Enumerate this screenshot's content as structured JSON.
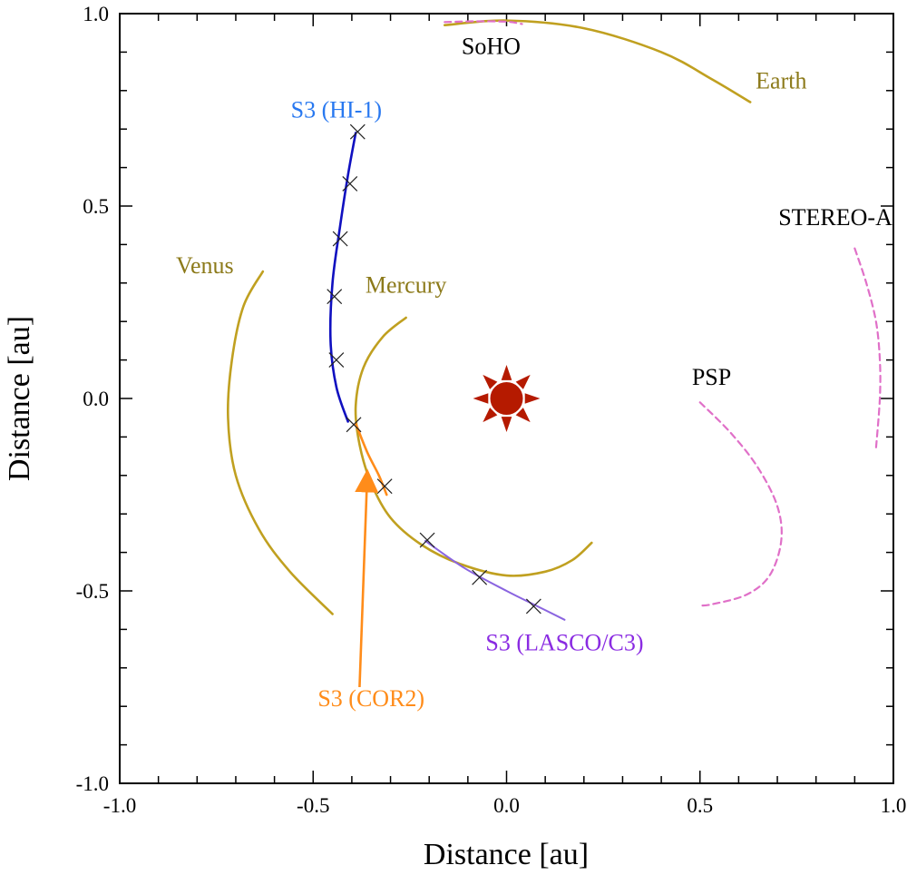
{
  "chart_data": {
    "type": "line",
    "xlabel": "Distance [au]",
    "ylabel": "Distance [au]",
    "xlim": [
      -1.0,
      1.0
    ],
    "ylim": [
      -1.0,
      1.0
    ],
    "xticks": [
      -1.0,
      -0.5,
      0.0,
      0.5,
      1.0
    ],
    "yticks": [
      -1.0,
      -0.5,
      0.0,
      0.5,
      1.0
    ],
    "xtick_labels": [
      "-1.0",
      "-0.5",
      "0.0",
      "0.5",
      "1.0"
    ],
    "ytick_labels": [
      "-1.0",
      "-0.5",
      "0.0",
      "0.5",
      "1.0"
    ],
    "grid": false,
    "colors": {
      "planet": "#c0a020",
      "spacecraft": "#e070c8",
      "hi1": "#1010c0",
      "cor2": "#ff8c1a",
      "lasco": "#8a64e0",
      "sun": "#b51a00",
      "marker": "#222222"
    },
    "series": [
      {
        "name": "Earth",
        "style": "planet",
        "dash": false,
        "points": [
          [
            -0.16,
            0.97
          ],
          [
            0.0,
            0.982
          ],
          [
            0.2,
            0.962
          ],
          [
            0.4,
            0.9
          ],
          [
            0.53,
            0.83
          ],
          [
            0.63,
            0.77
          ]
        ]
      },
      {
        "name": "Venus",
        "style": "planet",
        "dash": false,
        "points": [
          [
            -0.63,
            0.33
          ],
          [
            -0.68,
            0.24
          ],
          [
            -0.71,
            0.1
          ],
          [
            -0.72,
            -0.05
          ],
          [
            -0.7,
            -0.2
          ],
          [
            -0.64,
            -0.34
          ],
          [
            -0.56,
            -0.45
          ],
          [
            -0.45,
            -0.56
          ]
        ]
      },
      {
        "name": "Mercury",
        "style": "planet",
        "dash": false,
        "points": [
          [
            -0.26,
            0.21
          ],
          [
            -0.32,
            0.16
          ],
          [
            -0.37,
            0.08
          ],
          [
            -0.39,
            -0.02
          ],
          [
            -0.38,
            -0.12
          ],
          [
            -0.35,
            -0.22
          ],
          [
            -0.3,
            -0.31
          ],
          [
            -0.22,
            -0.38
          ],
          [
            -0.12,
            -0.43
          ],
          [
            0.0,
            -0.46
          ],
          [
            0.1,
            -0.45
          ],
          [
            0.17,
            -0.42
          ],
          [
            0.22,
            -0.375
          ]
        ]
      },
      {
        "name": "SoHO",
        "style": "spacecraft",
        "dash": true,
        "points": [
          [
            -0.16,
            0.978
          ],
          [
            -0.08,
            0.98
          ],
          [
            0.0,
            0.979
          ],
          [
            0.04,
            0.973
          ]
        ]
      },
      {
        "name": "STEREO-A",
        "style": "spacecraft",
        "dash": true,
        "points": [
          [
            0.9,
            0.39
          ],
          [
            0.93,
            0.3
          ],
          [
            0.955,
            0.2
          ],
          [
            0.965,
            0.1
          ],
          [
            0.965,
            0.0
          ],
          [
            0.955,
            -0.13
          ]
        ]
      },
      {
        "name": "PSP",
        "style": "spacecraft",
        "dash": true,
        "points": [
          [
            0.5,
            -0.01
          ],
          [
            0.58,
            -0.09
          ],
          [
            0.65,
            -0.18
          ],
          [
            0.7,
            -0.28
          ],
          [
            0.71,
            -0.37
          ],
          [
            0.68,
            -0.46
          ],
          [
            0.62,
            -0.51
          ],
          [
            0.53,
            -0.535
          ],
          [
            0.5,
            -0.538
          ]
        ]
      },
      {
        "name": "S3 (HI-1)",
        "style": "hi1",
        "dash": false,
        "points": [
          [
            -0.39,
            0.69
          ],
          [
            -0.41,
            0.58
          ],
          [
            -0.43,
            0.45
          ],
          [
            -0.45,
            0.3
          ],
          [
            -0.455,
            0.15
          ],
          [
            -0.44,
            0.03
          ],
          [
            -0.41,
            -0.06
          ]
        ]
      },
      {
        "name": "S3 (COR2)",
        "style": "cor2",
        "dash": false,
        "points": [
          [
            -0.39,
            -0.065
          ],
          [
            -0.36,
            -0.14
          ],
          [
            -0.33,
            -0.2
          ],
          [
            -0.31,
            -0.25
          ]
        ]
      },
      {
        "name": "S3 (LASCO/C3)",
        "style": "lasco",
        "dash": false,
        "points": [
          [
            -0.21,
            -0.37
          ],
          [
            -0.11,
            -0.44
          ],
          [
            0.0,
            -0.5
          ],
          [
            0.08,
            -0.54
          ],
          [
            0.15,
            -0.575
          ]
        ]
      }
    ],
    "markers": [
      [
        -0.385,
        0.693
      ],
      [
        -0.405,
        0.558
      ],
      [
        -0.43,
        0.415
      ],
      [
        -0.445,
        0.265
      ],
      [
        -0.44,
        0.1
      ],
      [
        -0.395,
        -0.068
      ],
      [
        -0.315,
        -0.228
      ],
      [
        -0.205,
        -0.368
      ],
      [
        -0.07,
        -0.465
      ],
      [
        0.07,
        -0.54
      ]
    ],
    "sun": {
      "x": 0.0,
      "y": 0.0
    },
    "arrow": {
      "from": [
        -0.38,
        -0.75
      ],
      "to": [
        -0.36,
        -0.195
      ]
    },
    "annotations": [
      {
        "text": "SoHO",
        "x": -0.04,
        "y": 0.895,
        "color": "#000000",
        "anchor": "middle"
      },
      {
        "text": "Earth",
        "x": 0.71,
        "y": 0.805,
        "color": "#8c7a1a",
        "anchor": "middle"
      },
      {
        "text": "S3 (HI-1)",
        "x": -0.44,
        "y": 0.73,
        "color": "#2878f0",
        "anchor": "middle"
      },
      {
        "text": "STEREO-A",
        "x": 0.85,
        "y": 0.45,
        "color": "#000000",
        "anchor": "middle"
      },
      {
        "text": "Venus",
        "x": -0.78,
        "y": 0.325,
        "color": "#8c7a1a",
        "anchor": "middle"
      },
      {
        "text": "Mercury",
        "x": -0.26,
        "y": 0.275,
        "color": "#8c7a1a",
        "anchor": "middle"
      },
      {
        "text": "PSP",
        "x": 0.53,
        "y": 0.035,
        "color": "#000000",
        "anchor": "middle"
      },
      {
        "text": "S3 (LASCO/C3)",
        "x": 0.15,
        "y": -0.655,
        "color": "#8a2be2",
        "anchor": "middle"
      },
      {
        "text": "S3 (COR2)",
        "x": -0.35,
        "y": -0.8,
        "color": "#ff8c1a",
        "anchor": "middle"
      }
    ]
  }
}
